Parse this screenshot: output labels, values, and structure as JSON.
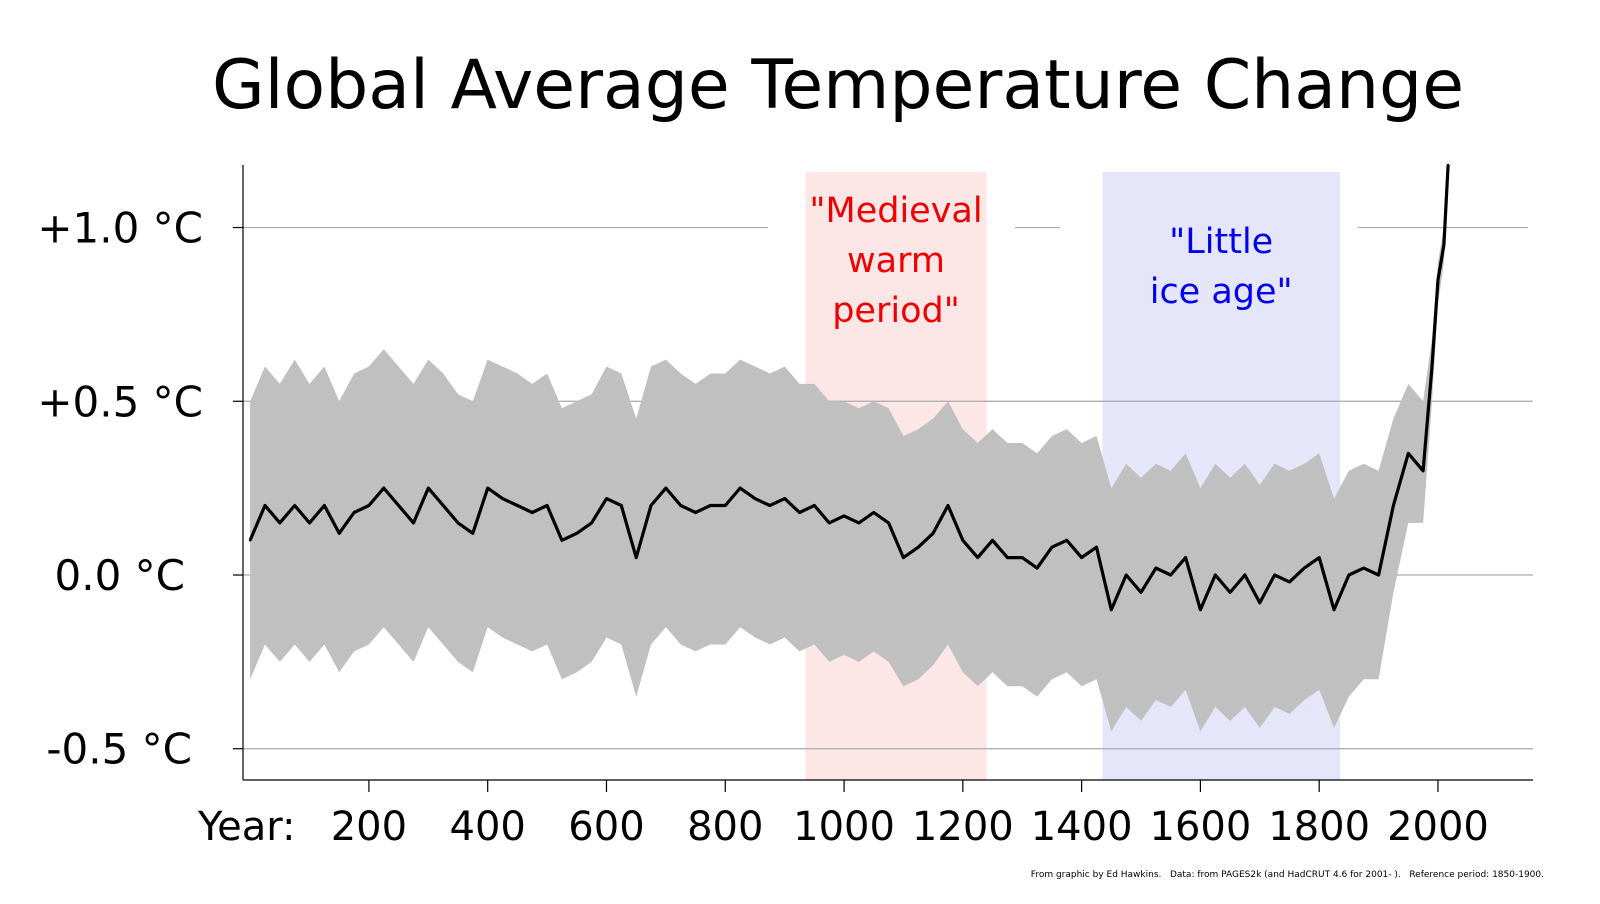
{
  "chart_data": {
    "type": "line",
    "title": "Global Average Temperature Change",
    "xlabel": "Year:",
    "ylabel": "",
    "xlim": [
      -12,
      2160
    ],
    "ylim": [
      -0.59,
      1.18
    ],
    "grid": "horizontal",
    "x_ticks": [
      200,
      400,
      600,
      800,
      1000,
      1200,
      1400,
      1600,
      1800,
      2000
    ],
    "x_tick_labels": [
      "200",
      "400",
      "600",
      "800",
      "1000",
      "1200",
      "1400",
      "1600",
      "1800",
      "2000"
    ],
    "y_ticks": [
      1.0,
      0.5,
      0.0,
      -0.5
    ],
    "y_tick_labels": [
      "+1.0 °C",
      "+0.5 °C",
      "0.0 °C",
      "-0.5 °C"
    ],
    "x": [
      0,
      25,
      50,
      75,
      100,
      125,
      150,
      175,
      200,
      225,
      250,
      275,
      300,
      325,
      350,
      375,
      400,
      425,
      450,
      475,
      500,
      525,
      550,
      575,
      600,
      625,
      650,
      675,
      700,
      725,
      750,
      775,
      800,
      825,
      850,
      875,
      900,
      925,
      950,
      975,
      1000,
      1025,
      1050,
      1075,
      1100,
      1125,
      1150,
      1175,
      1200,
      1225,
      1250,
      1275,
      1300,
      1325,
      1350,
      1375,
      1400,
      1425,
      1450,
      1475,
      1500,
      1525,
      1550,
      1575,
      1600,
      1625,
      1650,
      1675,
      1700,
      1725,
      1750,
      1775,
      1800,
      1825,
      1850,
      1875,
      1900,
      1925,
      1950,
      1975,
      1990,
      2000,
      2010,
      2017
    ],
    "series": [
      {
        "role": "mean",
        "color": "#000000",
        "values": [
          0.1,
          0.2,
          0.15,
          0.2,
          0.15,
          0.2,
          0.12,
          0.18,
          0.2,
          0.25,
          0.2,
          0.15,
          0.25,
          0.2,
          0.15,
          0.12,
          0.25,
          0.22,
          0.2,
          0.18,
          0.2,
          0.1,
          0.12,
          0.15,
          0.22,
          0.2,
          0.05,
          0.2,
          0.25,
          0.2,
          0.18,
          0.2,
          0.2,
          0.25,
          0.22,
          0.2,
          0.22,
          0.18,
          0.2,
          0.15,
          0.17,
          0.15,
          0.18,
          0.15,
          0.05,
          0.08,
          0.12,
          0.2,
          0.1,
          0.05,
          0.1,
          0.05,
          0.05,
          0.02,
          0.08,
          0.1,
          0.05,
          0.08,
          -0.1,
          0.0,
          -0.05,
          0.02,
          0.0,
          0.05,
          -0.1,
          0.0,
          -0.05,
          0.0,
          -0.08,
          0.0,
          -0.02,
          0.02,
          0.05,
          -0.1,
          0.0,
          0.02,
          0.0,
          0.2,
          0.35,
          0.3,
          0.6,
          0.85,
          0.95,
          1.18
        ]
      },
      {
        "role": "uncertainty-upper",
        "color": "#c0c0c0",
        "values": [
          0.5,
          0.6,
          0.55,
          0.62,
          0.55,
          0.6,
          0.5,
          0.58,
          0.6,
          0.65,
          0.6,
          0.55,
          0.62,
          0.58,
          0.52,
          0.5,
          0.62,
          0.6,
          0.58,
          0.55,
          0.58,
          0.48,
          0.5,
          0.52,
          0.6,
          0.58,
          0.45,
          0.6,
          0.62,
          0.58,
          0.55,
          0.58,
          0.58,
          0.62,
          0.6,
          0.58,
          0.6,
          0.55,
          0.55,
          0.5,
          0.5,
          0.48,
          0.5,
          0.48,
          0.4,
          0.42,
          0.45,
          0.5,
          0.42,
          0.38,
          0.42,
          0.38,
          0.38,
          0.35,
          0.4,
          0.42,
          0.38,
          0.4,
          0.25,
          0.32,
          0.28,
          0.32,
          0.3,
          0.35,
          0.25,
          0.32,
          0.28,
          0.32,
          0.26,
          0.32,
          0.3,
          0.32,
          0.35,
          0.22,
          0.3,
          0.32,
          0.3,
          0.45,
          0.55,
          0.5,
          0.68,
          0.9,
          1.0,
          1.2
        ]
      },
      {
        "role": "uncertainty-lower",
        "color": "#c0c0c0",
        "values": [
          -0.3,
          -0.2,
          -0.25,
          -0.2,
          -0.25,
          -0.2,
          -0.28,
          -0.22,
          -0.2,
          -0.15,
          -0.2,
          -0.25,
          -0.15,
          -0.2,
          -0.25,
          -0.28,
          -0.15,
          -0.18,
          -0.2,
          -0.22,
          -0.2,
          -0.3,
          -0.28,
          -0.25,
          -0.18,
          -0.2,
          -0.35,
          -0.2,
          -0.15,
          -0.2,
          -0.22,
          -0.2,
          -0.2,
          -0.15,
          -0.18,
          -0.2,
          -0.18,
          -0.22,
          -0.2,
          -0.25,
          -0.23,
          -0.25,
          -0.22,
          -0.25,
          -0.32,
          -0.3,
          -0.26,
          -0.2,
          -0.28,
          -0.32,
          -0.28,
          -0.32,
          -0.32,
          -0.35,
          -0.3,
          -0.28,
          -0.32,
          -0.3,
          -0.45,
          -0.38,
          -0.42,
          -0.36,
          -0.38,
          -0.33,
          -0.45,
          -0.38,
          -0.42,
          -0.38,
          -0.44,
          -0.38,
          -0.4,
          -0.36,
          -0.33,
          -0.44,
          -0.35,
          -0.3,
          -0.3,
          -0.05,
          0.15,
          0.15,
          0.5,
          0.78,
          0.9,
          1.12
        ]
      }
    ],
    "annotations": [
      {
        "label": "\"Medieval warm period\"",
        "lines": [
          "\"Medieval",
          "warm",
          "period\""
        ],
        "x_range": [
          935,
          1240
        ],
        "color": "#ee0000",
        "band_color": "#fce6e6"
      },
      {
        "label": "\"Little ice age\"",
        "lines": [
          "\"Little",
          "ice age\""
        ],
        "x_range": [
          1435,
          1835
        ],
        "color": "#0000ee",
        "band_color": "#e6e6fa"
      }
    ],
    "footnote": "From graphic by Ed Hawkins.   Data: from PAGES2k (and HadCRUT 4.6 for 2001- ).   Reference period: 1850-1900."
  }
}
